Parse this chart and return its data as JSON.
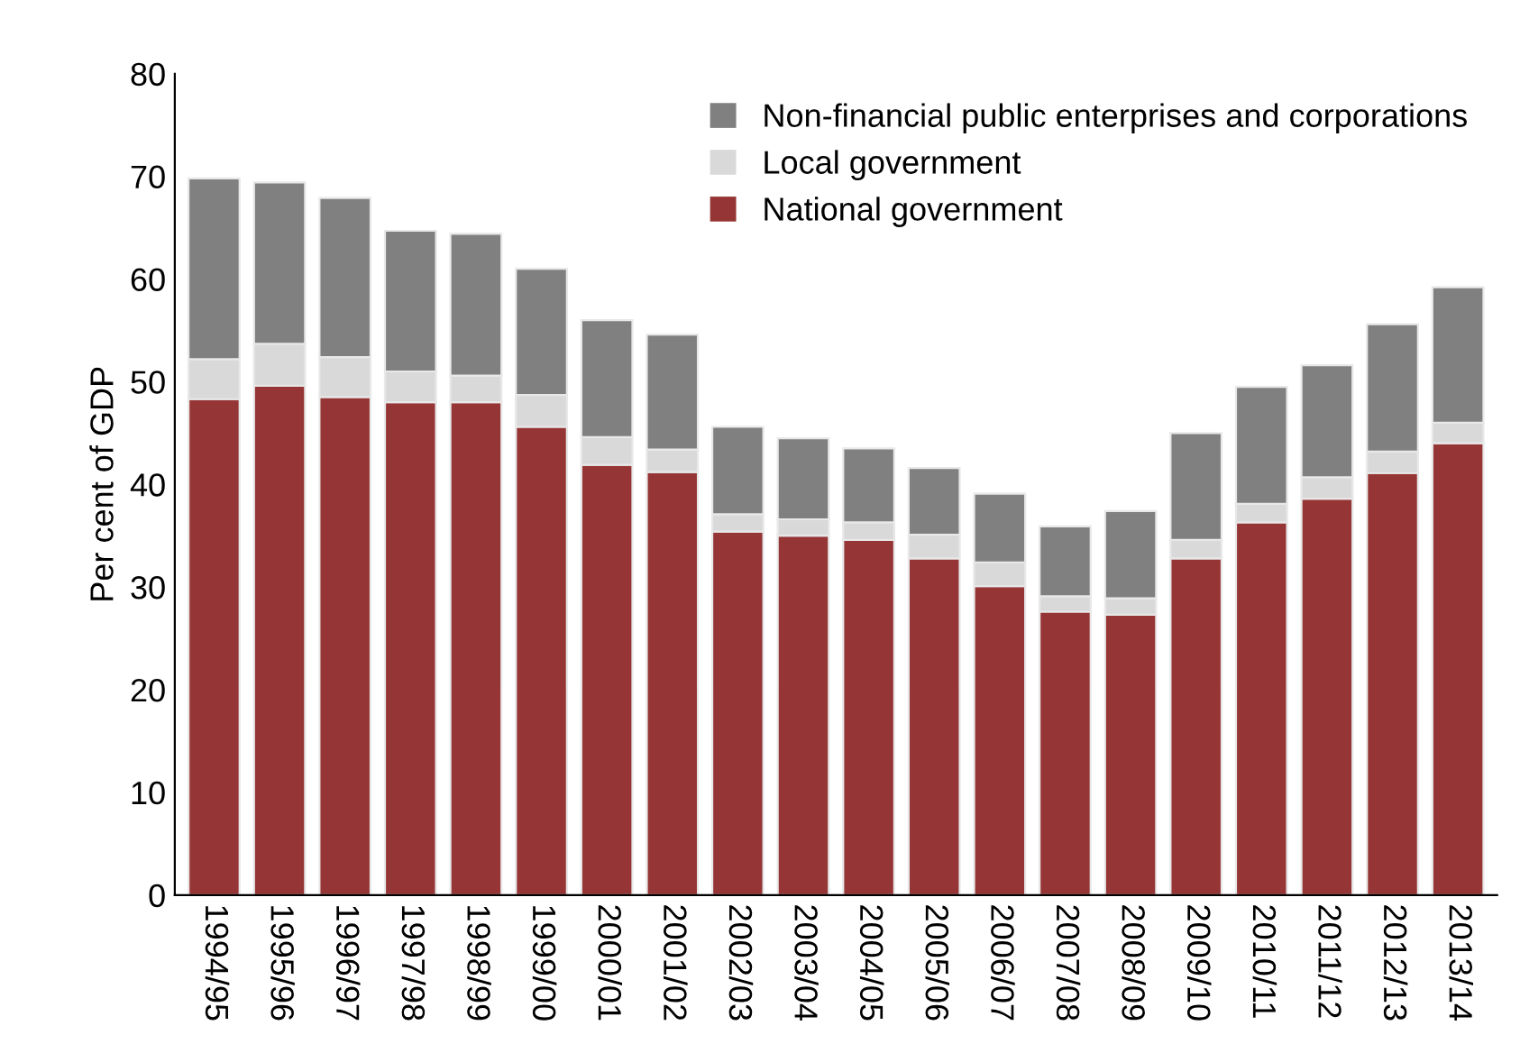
{
  "chart_data": {
    "type": "bar",
    "stacked": true,
    "ylabel": "Per cent of GDP",
    "categories": [
      "1994/95",
      "1995/96",
      "1996/97",
      "1997/98",
      "1998/99",
      "1999/00",
      "2000/01",
      "2001/02",
      "2002/03",
      "2003/04",
      "2004/05",
      "2005/06",
      "2006/07",
      "2007/08",
      "2008/09",
      "2009/10",
      "2010/11",
      "2011/12",
      "2012/13",
      "2013/14"
    ],
    "series": [
      {
        "name": "National government",
        "color": "#963535",
        "values": [
          48.3,
          49.6,
          48.5,
          48.0,
          48.0,
          45.6,
          41.9,
          41.2,
          35.4,
          35.0,
          34.6,
          32.8,
          30.1,
          27.6,
          27.3,
          32.8,
          36.3,
          38.6,
          41.1,
          44.0
        ]
      },
      {
        "name": "Local government",
        "color": "#d9d9d9",
        "values": [
          3.9,
          4.1,
          3.9,
          3.0,
          2.6,
          3.1,
          2.7,
          2.2,
          1.7,
          1.6,
          1.7,
          2.3,
          2.3,
          1.5,
          1.6,
          1.8,
          1.8,
          2.1,
          2.1,
          2.0
        ]
      },
      {
        "name": "Non-financial public enterprises and corporations",
        "color": "#808080",
        "values": [
          17.6,
          15.7,
          15.5,
          13.7,
          13.8,
          12.3,
          11.4,
          11.2,
          8.5,
          7.9,
          7.2,
          6.5,
          6.7,
          6.8,
          8.5,
          10.4,
          11.4,
          10.9,
          12.4,
          13.2
        ]
      }
    ],
    "ylim": [
      0,
      80
    ],
    "yticks": [
      0,
      10,
      20,
      30,
      40,
      50,
      60,
      70,
      80
    ],
    "grid": false,
    "legend": "top right"
  }
}
